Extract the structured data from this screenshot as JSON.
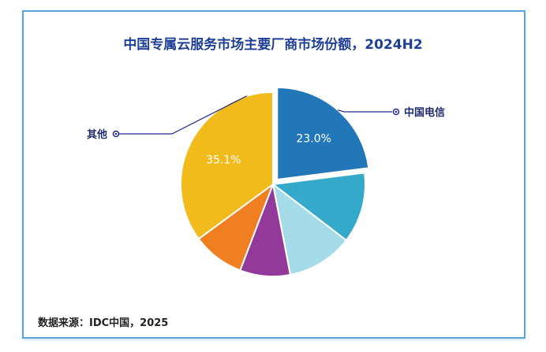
{
  "chart_data": {
    "type": "pie",
    "title": "中国专属云服务市场主要厂商市场份额，2024H2",
    "source": "数据来源：IDC中国，2025",
    "slices": [
      {
        "label": "中国电信",
        "value": 23.0,
        "value_label": "23.0%",
        "color": "#2277b8",
        "exploded": true
      },
      {
        "label": "",
        "value": 12.4,
        "color": "#35a9c9"
      },
      {
        "label": "",
        "value": 11.6,
        "color": "#a6dbe9"
      },
      {
        "label": "",
        "value": 8.8,
        "color": "#93399a"
      },
      {
        "label": "",
        "value": 9.1,
        "color": "#f07f22"
      },
      {
        "label": "其他",
        "value": 35.1,
        "value_label": "35.1%",
        "color": "#f2bb1c"
      }
    ],
    "start": "12 o'clock, clockwise"
  }
}
